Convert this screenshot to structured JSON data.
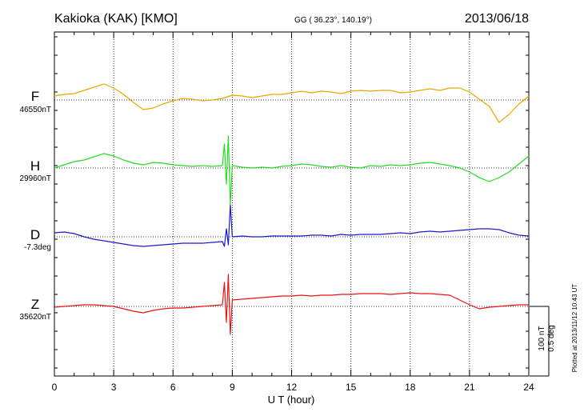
{
  "header": {
    "station": "Kakioka (KAK)  [KMO]",
    "coords": "GG ( 36.23°, 140.19°)",
    "date": "2013/06/18"
  },
  "plotted_note": "Plotted at 2013/11/12 10:43 UT",
  "scale_bar": {
    "line1": "100 nT",
    "line2": "0.5 deg"
  },
  "colors": {
    "F": "#e8a800",
    "H": "#22dd22",
    "D": "#1a1acc",
    "Z": "#ee1111"
  },
  "chart_data": {
    "type": "line",
    "xlabel": "U T (hour)",
    "xlim": [
      0,
      24
    ],
    "xticks": [
      0,
      3,
      6,
      9,
      12,
      15,
      18,
      21,
      24
    ],
    "grid": true,
    "series": [
      {
        "name": "F",
        "baseline_label": "46550nT",
        "x": [
          0,
          0.5,
          1,
          1.5,
          2,
          2.5,
          3,
          3.5,
          4,
          4.5,
          5,
          5.5,
          6,
          6.5,
          7,
          7.5,
          8,
          8.5,
          9,
          9.5,
          10,
          10.5,
          11,
          11.5,
          12,
          12.5,
          13,
          13.5,
          14,
          14.5,
          15,
          15.5,
          16,
          16.5,
          17,
          17.5,
          18,
          18.5,
          19,
          19.5,
          20,
          20.5,
          21,
          21.5,
          22,
          22.5,
          23,
          23.5,
          24
        ],
        "y": [
          5,
          7,
          8,
          12,
          16,
          20,
          15,
          7,
          -3,
          -12,
          -10,
          -5,
          -1,
          2,
          1,
          -1,
          0,
          2,
          6,
          5,
          3,
          5,
          7,
          7,
          9,
          11,
          9,
          11,
          10,
          8,
          11,
          12,
          11,
          12,
          12,
          9,
          10,
          12,
          14,
          12,
          15,
          15,
          10,
          1,
          -8,
          -28,
          -18,
          -5,
          5
        ]
      },
      {
        "name": "H",
        "baseline_label": "29960nT",
        "x": [
          0,
          0.5,
          1,
          1.5,
          2,
          2.5,
          3,
          3.5,
          4,
          4.5,
          5,
          5.5,
          6,
          6.5,
          7,
          7.5,
          8,
          8.5,
          8.6,
          8.7,
          8.8,
          8.9,
          9,
          9.5,
          10,
          10.5,
          11,
          11.5,
          12,
          12.5,
          13,
          13.5,
          14,
          14.5,
          15,
          15.5,
          16,
          16.5,
          17,
          17.5,
          18,
          18.5,
          19,
          19.5,
          20,
          20.5,
          21,
          21.5,
          22,
          22.5,
          23,
          23.5,
          24
        ],
        "y": [
          0,
          4,
          8,
          10,
          14,
          18,
          15,
          10,
          6,
          4,
          7,
          6,
          4,
          3,
          2,
          3,
          2,
          3,
          30,
          -20,
          40,
          -45,
          3,
          1,
          0,
          1,
          0,
          2,
          3,
          5,
          4,
          2,
          1,
          3,
          1,
          0,
          3,
          2,
          4,
          3,
          4,
          6,
          7,
          5,
          3,
          0,
          -5,
          -12,
          -17,
          -12,
          -5,
          5,
          15
        ]
      },
      {
        "name": "D",
        "baseline_label": "-7.3deg",
        "x": [
          0,
          0.5,
          1,
          1.5,
          2,
          2.5,
          3,
          3.5,
          4,
          4.5,
          5,
          5.5,
          6,
          6.5,
          7,
          7.5,
          8,
          8.5,
          8.6,
          8.7,
          8.8,
          8.9,
          9,
          9.5,
          10,
          10.5,
          11,
          11.5,
          12,
          12.5,
          13,
          13.5,
          14,
          14.5,
          15,
          15.5,
          16,
          16.5,
          17,
          17.5,
          18,
          18.5,
          19,
          19.5,
          20,
          20.5,
          21,
          21.5,
          22,
          22.5,
          23,
          23.5,
          24
        ],
        "y": [
          5,
          6,
          4,
          0,
          -3,
          -5,
          -7,
          -9,
          -11,
          -12,
          -11,
          -10,
          -9,
          -8,
          -8,
          -8,
          -7,
          -6,
          -12,
          10,
          -10,
          40,
          0,
          1,
          0,
          0,
          1,
          1,
          1,
          1,
          2,
          2,
          1,
          3,
          2,
          3,
          3,
          3,
          4,
          5,
          4,
          6,
          7,
          6,
          7,
          8,
          9,
          10,
          10,
          9,
          5,
          2,
          1
        ]
      },
      {
        "name": "Z",
        "baseline_label": "35620nT",
        "x": [
          0,
          0.5,
          1,
          1.5,
          2,
          2.5,
          3,
          3.5,
          4,
          4.5,
          5,
          5.5,
          6,
          6.5,
          7,
          7.5,
          8,
          8.5,
          8.6,
          8.7,
          8.8,
          8.9,
          9,
          9.5,
          10,
          10.5,
          11,
          11.5,
          12,
          12.5,
          13,
          13.5,
          14,
          14.5,
          15,
          15.5,
          16,
          16.5,
          17,
          17.5,
          18,
          18.5,
          19,
          19.5,
          20,
          20.5,
          21,
          21.5,
          22,
          22.5,
          23,
          23.5,
          24
        ],
        "y": [
          -1,
          0,
          1,
          2,
          2,
          1,
          0,
          -3,
          -6,
          -8,
          -5,
          -3,
          -2,
          -2,
          -1,
          0,
          1,
          2,
          30,
          -20,
          40,
          -35,
          8,
          9,
          10,
          11,
          12,
          13,
          13,
          14,
          13,
          14,
          14,
          15,
          15,
          16,
          16,
          16,
          15,
          16,
          17,
          16,
          16,
          15,
          14,
          8,
          2,
          -3,
          -1,
          0,
          1,
          2,
          2
        ]
      }
    ]
  }
}
